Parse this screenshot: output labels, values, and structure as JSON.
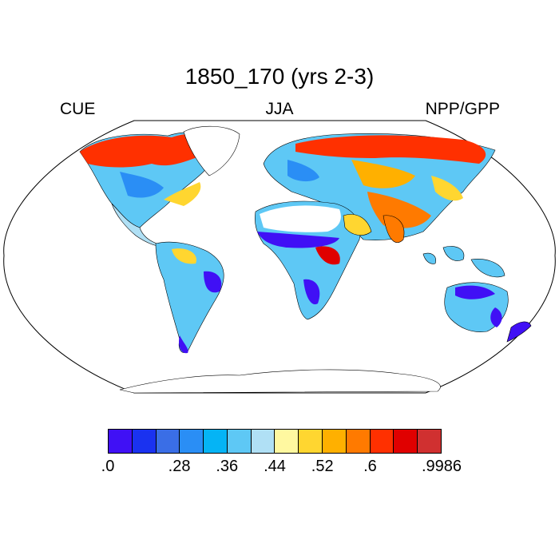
{
  "title": "1850_170 (yrs 2-3)",
  "left_label": "CUE",
  "center_label": "JJA",
  "right_label": "NPP/GPP",
  "colorbar": {
    "colors": [
      "#4010f5",
      "#1a32f0",
      "#3a6ee6",
      "#2a8ef5",
      "#05b4f5",
      "#5ec8f5",
      "#b0e0f5",
      "#fff8a0",
      "#ffd630",
      "#ffb000",
      "#ff7a00",
      "#ff3000",
      "#e00000",
      "#d03030"
    ],
    "tick_labels": [
      ".0",
      ".28",
      ".36",
      ".44",
      ".52",
      ".6",
      ".9986"
    ],
    "tick_box_index": [
      0,
      3,
      5,
      7,
      9,
      11,
      14
    ]
  }
}
